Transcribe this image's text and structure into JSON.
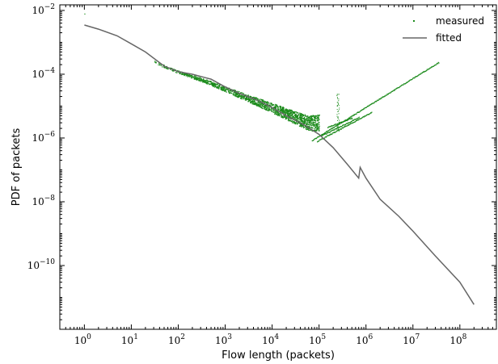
{
  "chart_data": {
    "type": "scatter",
    "title": "",
    "xlabel": "Flow length (packets)",
    "ylabel": "PDF of packets",
    "xscale": "log",
    "yscale": "log",
    "xlim": [
      0.3,
      600000000
    ],
    "ylim": [
      1e-12,
      0.015
    ],
    "x_tick_exponents": [
      0,
      1,
      2,
      3,
      4,
      5,
      6,
      7,
      8
    ],
    "y_tick_exponents": [
      -10,
      -8,
      -6,
      -4,
      -2
    ],
    "grid": false,
    "legend_position": "top-right",
    "colors": {
      "measured": "#1a8a1a",
      "fitted": "#666666"
    },
    "series": [
      {
        "name": "measured",
        "style": "points",
        "trend": [
          [
            30,
            0.00025
          ],
          [
            60,
            0.00016
          ],
          [
            100,
            0.00012
          ],
          [
            300,
            7e-05
          ],
          [
            1000,
            3.5e-05
          ],
          [
            3000,
            1.8e-05
          ],
          [
            10000,
            9e-06
          ],
          [
            30000,
            4.5e-06
          ],
          [
            60000,
            3e-06
          ],
          [
            100000,
            3e-06
          ]
        ],
        "x": [
          30,
          100,
          300,
          1000,
          3000,
          10000,
          30000,
          60000,
          100000,
          250000,
          500000,
          1000000,
          3000000,
          10000000,
          30000000
        ],
        "y": [
          0.00025,
          0.00012,
          7e-05,
          3.5e-05,
          1.8e-05,
          9e-06,
          4.5e-06,
          3e-06,
          3e-06,
          3e-06,
          4e-06,
          8e-06,
          2e-05,
          7e-05,
          0.00019
        ],
        "tail_lines": [
          {
            "x": [
              70000,
              35000000
            ],
            "y": [
              8.5e-07,
              0.00024
            ]
          },
          {
            "x": [
              90000,
              1300000
            ],
            "y": [
              8e-07,
              6.5e-06
            ]
          },
          {
            "x": [
              110000,
              700000
            ],
            "y": [
              1.2e-06,
              4.5e-06
            ]
          },
          {
            "x": [
              150000,
              500000
            ],
            "y": [
              2.2e-06,
              4.3e-06
            ]
          }
        ]
      },
      {
        "name": "fitted",
        "style": "line",
        "x": [
          1,
          2,
          5,
          10,
          20,
          50,
          100,
          200,
          500,
          1000,
          2000,
          5000,
          10000,
          20000,
          50000,
          100000,
          200000,
          400000,
          700000,
          750000,
          1000000,
          2000000,
          5000000,
          10000000,
          30000000,
          100000000,
          200000000
        ],
        "y": [
          0.0035,
          0.0026,
          0.0016,
          0.0009,
          0.0005,
          0.00018,
          0.00012,
          0.0001,
          7e-05,
          4e-05,
          2.5e-05,
          1.5e-05,
          9e-06,
          5e-06,
          2.5e-06,
          1.3e-06,
          5e-07,
          1.5e-07,
          5.5e-08,
          1.2e-07,
          5.5e-08,
          1.2e-08,
          3.5e-09,
          1.2e-09,
          2e-10,
          3e-11,
          6e-12
        ]
      }
    ]
  }
}
